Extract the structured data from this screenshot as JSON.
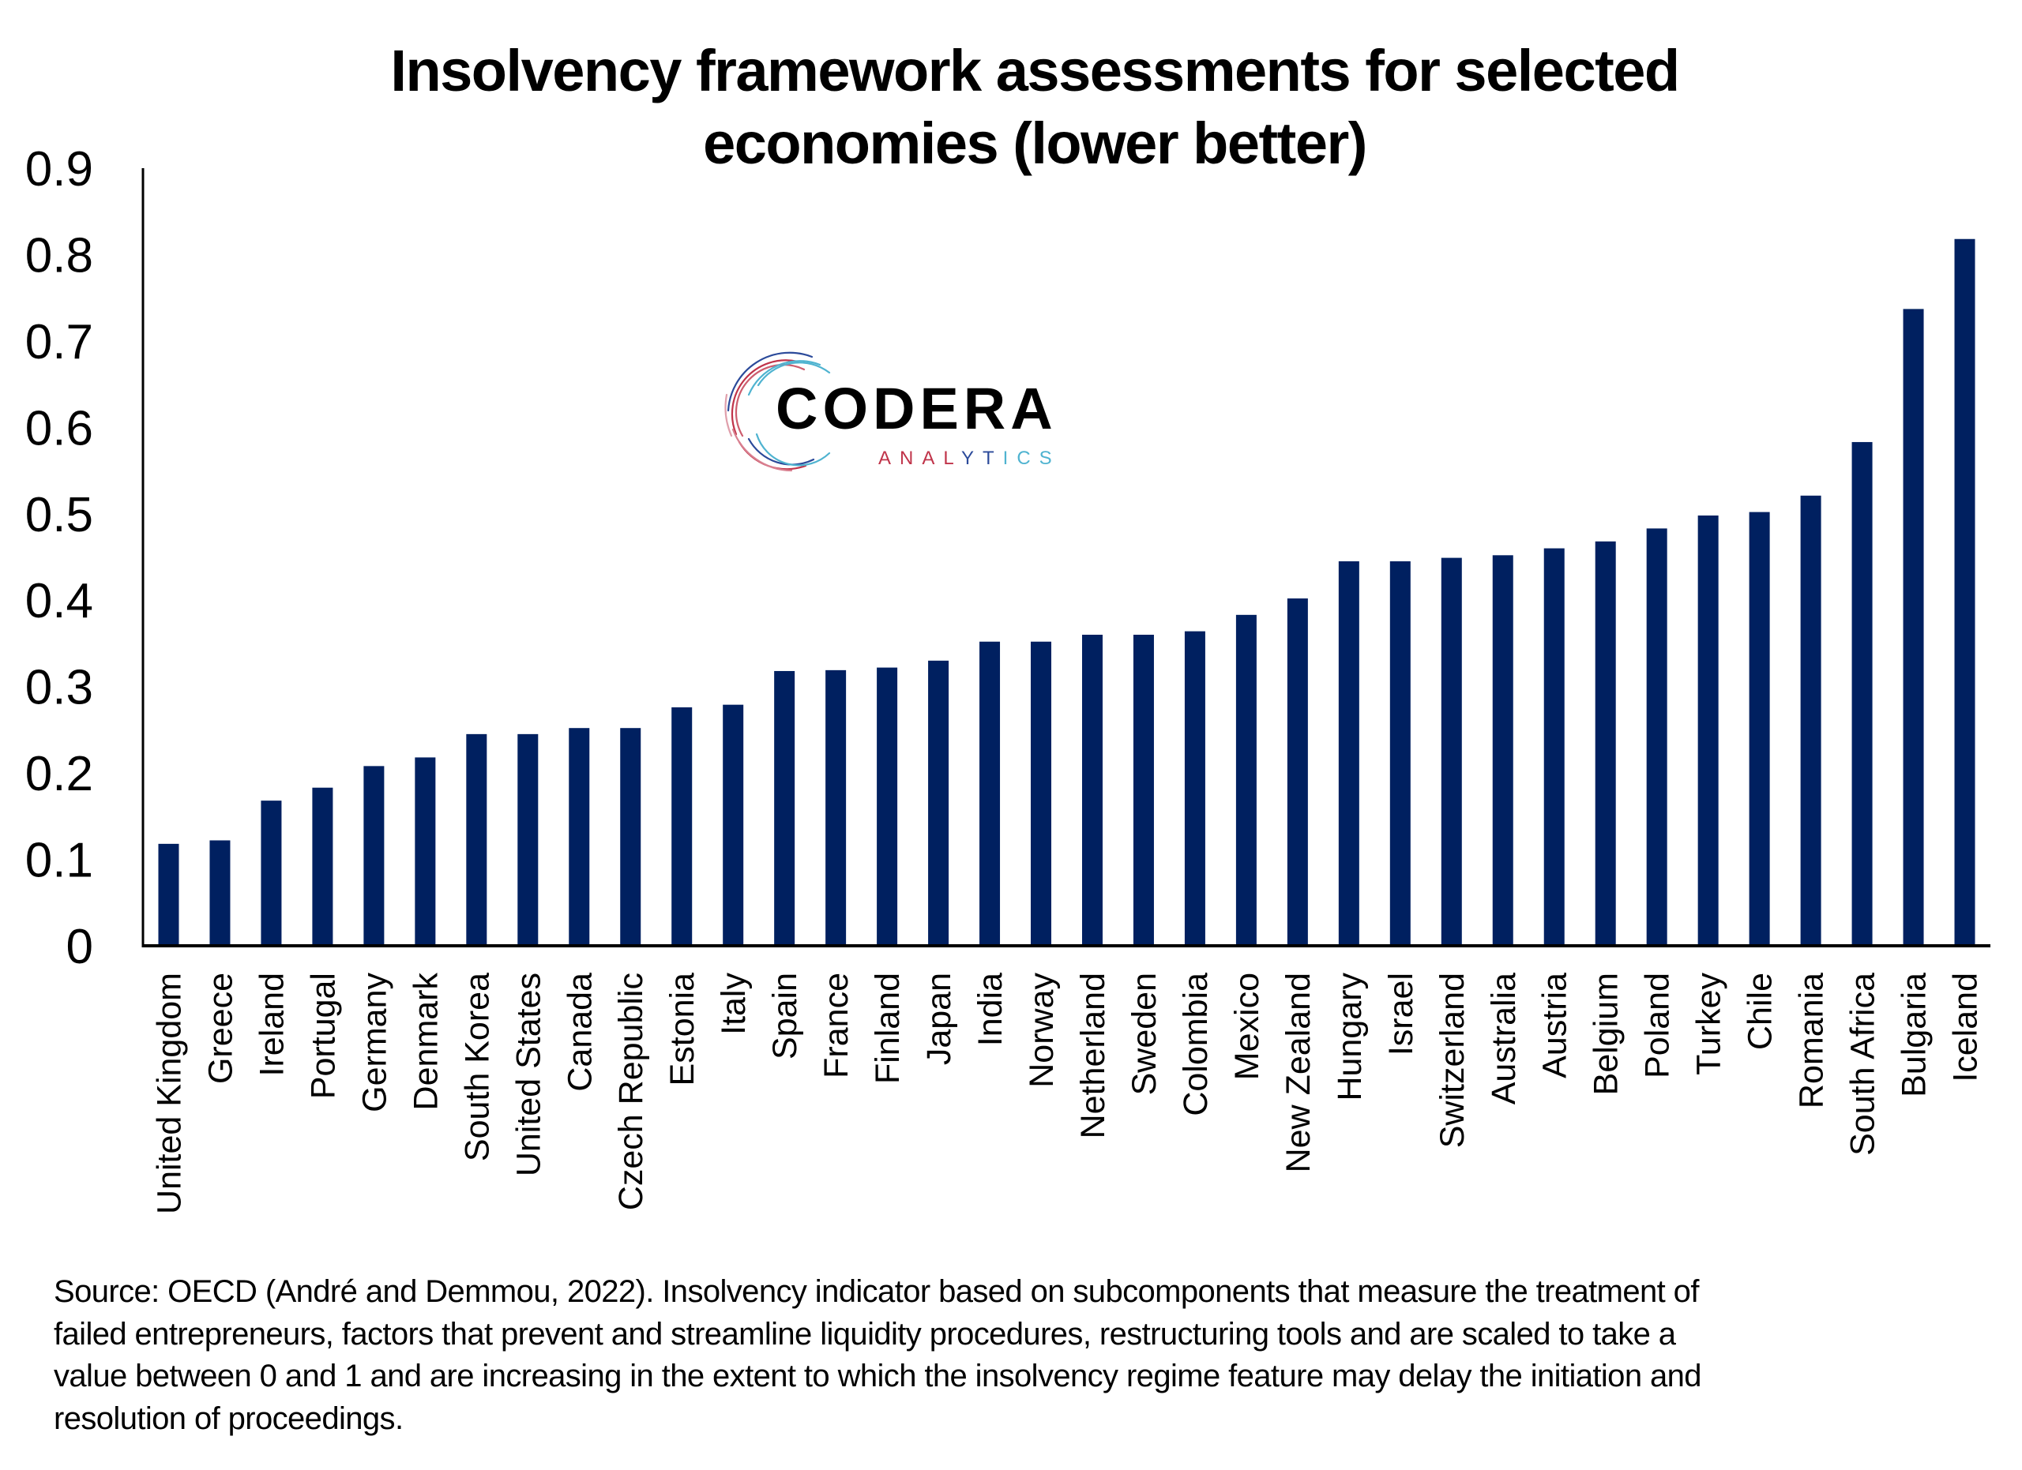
{
  "chart_data": {
    "type": "bar",
    "title": [
      "Insolvency framework assessments for selected",
      "economies (lower better)"
    ],
    "xlabel": "",
    "ylabel": "",
    "ylim": [
      0,
      0.9
    ],
    "yticks": [
      0,
      0.1,
      0.2,
      0.3,
      0.4,
      0.5,
      0.6,
      0.7,
      0.8,
      0.9
    ],
    "ytick_labels": [
      "0",
      "0.1",
      "0.2",
      "0.3",
      "0.4",
      "0.5",
      "0.6",
      "0.7",
      "0.8",
      "0.9"
    ],
    "grid": false,
    "legend": "none",
    "bar_color": "#002060",
    "categories": [
      "United Kingdom",
      "Greece",
      "Ireland",
      "Portugal",
      "Germany",
      "Denmark",
      "South Korea",
      "United States",
      "Canada",
      "Czech Republic",
      "Estonia",
      "Italy",
      "Spain",
      "France",
      "Finland",
      "Japan",
      "India",
      "Norway",
      "Netherland",
      "Sweden",
      "Colombia",
      "Mexico",
      "New Zealand",
      "Hungary",
      "Israel",
      "Switzerland",
      "Australia",
      "Austria",
      "Belgium",
      "Poland",
      "Turkey",
      "Chile",
      "Romania",
      "South Africa",
      "Bulgaria",
      "Iceland"
    ],
    "values": [
      0.118,
      0.122,
      0.168,
      0.183,
      0.208,
      0.218,
      0.245,
      0.245,
      0.252,
      0.252,
      0.276,
      0.279,
      0.318,
      0.319,
      0.322,
      0.33,
      0.352,
      0.352,
      0.36,
      0.36,
      0.364,
      0.383,
      0.402,
      0.445,
      0.445,
      0.449,
      0.452,
      0.46,
      0.468,
      0.483,
      0.498,
      0.502,
      0.521,
      0.583,
      0.737,
      0.818
    ]
  },
  "logo": {
    "name": "CODERA",
    "subtitle": "ANALYTICS",
    "colors": {
      "red": "#c0344a",
      "blue": "#2b4a9a",
      "cyan": "#4fb3d0"
    }
  },
  "footnote": [
    "Source: OECD (André and Demmou, 2022). Insolvency indicator based on subcomponents that measure the treatment of",
    "failed entrepreneurs, factors that prevent and streamline liquidity procedures, restructuring tools and are scaled to take a",
    "value between 0 and 1 and are increasing in the extent to which the insolvency regime feature may delay the initiation and",
    "resolution of proceedings."
  ]
}
